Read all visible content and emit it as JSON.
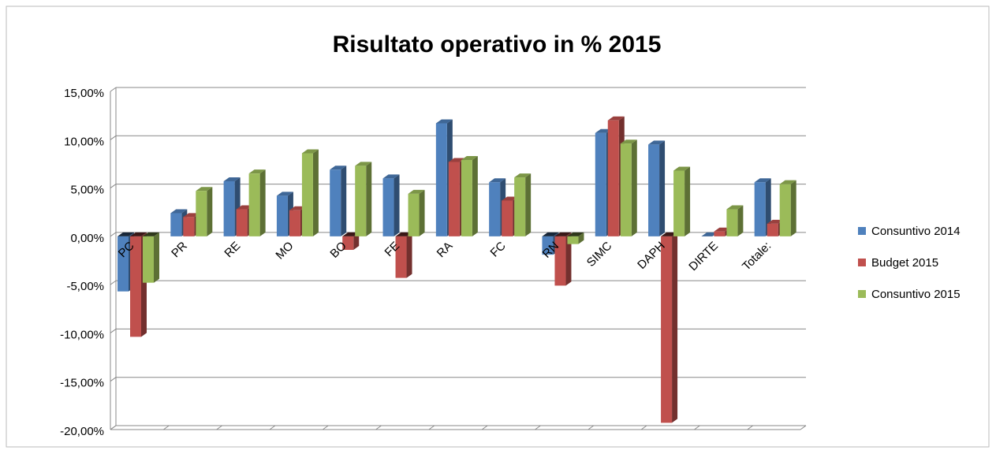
{
  "chart_data": {
    "type": "bar",
    "title": "Risultato operativo in % 2015",
    "categories": [
      "PC",
      "PR",
      "RE",
      "MO",
      "BO",
      "FE",
      "RA",
      "FC",
      "RN",
      "SIMC",
      "DAPH",
      "DIRTE",
      "Totale:"
    ],
    "series": [
      {
        "name": "Consuntivo 2014",
        "color": "#4f81bd",
        "values": [
          -5.7,
          2.4,
          5.7,
          4.2,
          6.9,
          6.0,
          11.7,
          5.6,
          -1.9,
          10.7,
          9.5,
          0,
          5.6
        ]
      },
      {
        "name": "Budget 2015",
        "color": "#c0504d",
        "values": [
          -10.4,
          2.0,
          2.8,
          2.7,
          -1.4,
          -4.3,
          7.7,
          3.7,
          -5.1,
          12.0,
          -19.3,
          0.5,
          1.3
        ]
      },
      {
        "name": "Consuntivo 2015",
        "color": "#9bbb59",
        "values": [
          -4.8,
          4.7,
          6.5,
          8.6,
          7.3,
          4.4,
          7.9,
          6.1,
          -0.8,
          9.6,
          6.8,
          2.8,
          5.4
        ]
      }
    ],
    "ylim": [
      -20,
      15
    ],
    "yticks": [
      {
        "value": -20,
        "label": "-20,00%"
      },
      {
        "value": -15,
        "label": "-15,00%"
      },
      {
        "value": -10,
        "label": "-10,00%"
      },
      {
        "value": -5,
        "label": "-5,00%"
      },
      {
        "value": 0,
        "label": "0,00%"
      },
      {
        "value": 5,
        "label": "5,00%"
      },
      {
        "value": 10,
        "label": "10,00%"
      },
      {
        "value": 15,
        "label": "15,00%"
      }
    ],
    "grid": true,
    "legend": "right"
  }
}
